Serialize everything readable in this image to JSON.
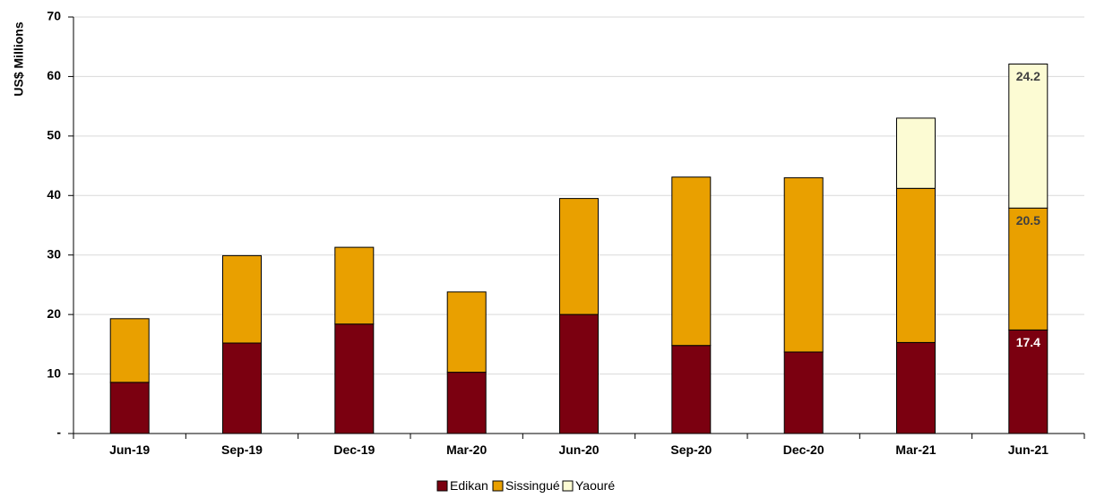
{
  "chart_data": {
    "type": "bar",
    "stacked": true,
    "ylabel": "US$ Millions",
    "ylim": [
      0,
      70
    ],
    "yticks": [
      0,
      10,
      20,
      30,
      40,
      50,
      60,
      70
    ],
    "ytick_labels": [
      "-",
      "10",
      "20",
      "30",
      "40",
      "50",
      "60",
      "70"
    ],
    "grid": true,
    "legend_position": "bottom-center",
    "categories": [
      "Jun-19",
      "Sep-19",
      "Dec-19",
      "Mar-20",
      "Jun-20",
      "Sep-20",
      "Dec-20",
      "Mar-21",
      "Jun-21"
    ],
    "series": [
      {
        "name": "Edikan",
        "color": "#7b0010",
        "values": [
          8.6,
          15.2,
          18.4,
          10.3,
          20.0,
          14.8,
          13.7,
          15.3,
          17.4
        ]
      },
      {
        "name": "Sissingué",
        "color": "#e9a000",
        "values": [
          10.7,
          14.7,
          12.9,
          13.5,
          19.5,
          28.3,
          29.3,
          25.9,
          20.5
        ]
      },
      {
        "name": "Yaouré",
        "color": "#fcfbd3",
        "values": [
          0,
          0,
          0,
          0,
          0,
          0,
          0,
          11.8,
          24.2
        ]
      }
    ],
    "data_labels": [
      {
        "category": "Jun-21",
        "series": "Edikan",
        "text": "17.4",
        "color": "#ffffff"
      },
      {
        "category": "Jun-21",
        "series": "Sissingué",
        "text": "20.5",
        "color": "#404040"
      },
      {
        "category": "Jun-21",
        "series": "Yaouré",
        "text": "24.2",
        "color": "#404040"
      }
    ]
  }
}
